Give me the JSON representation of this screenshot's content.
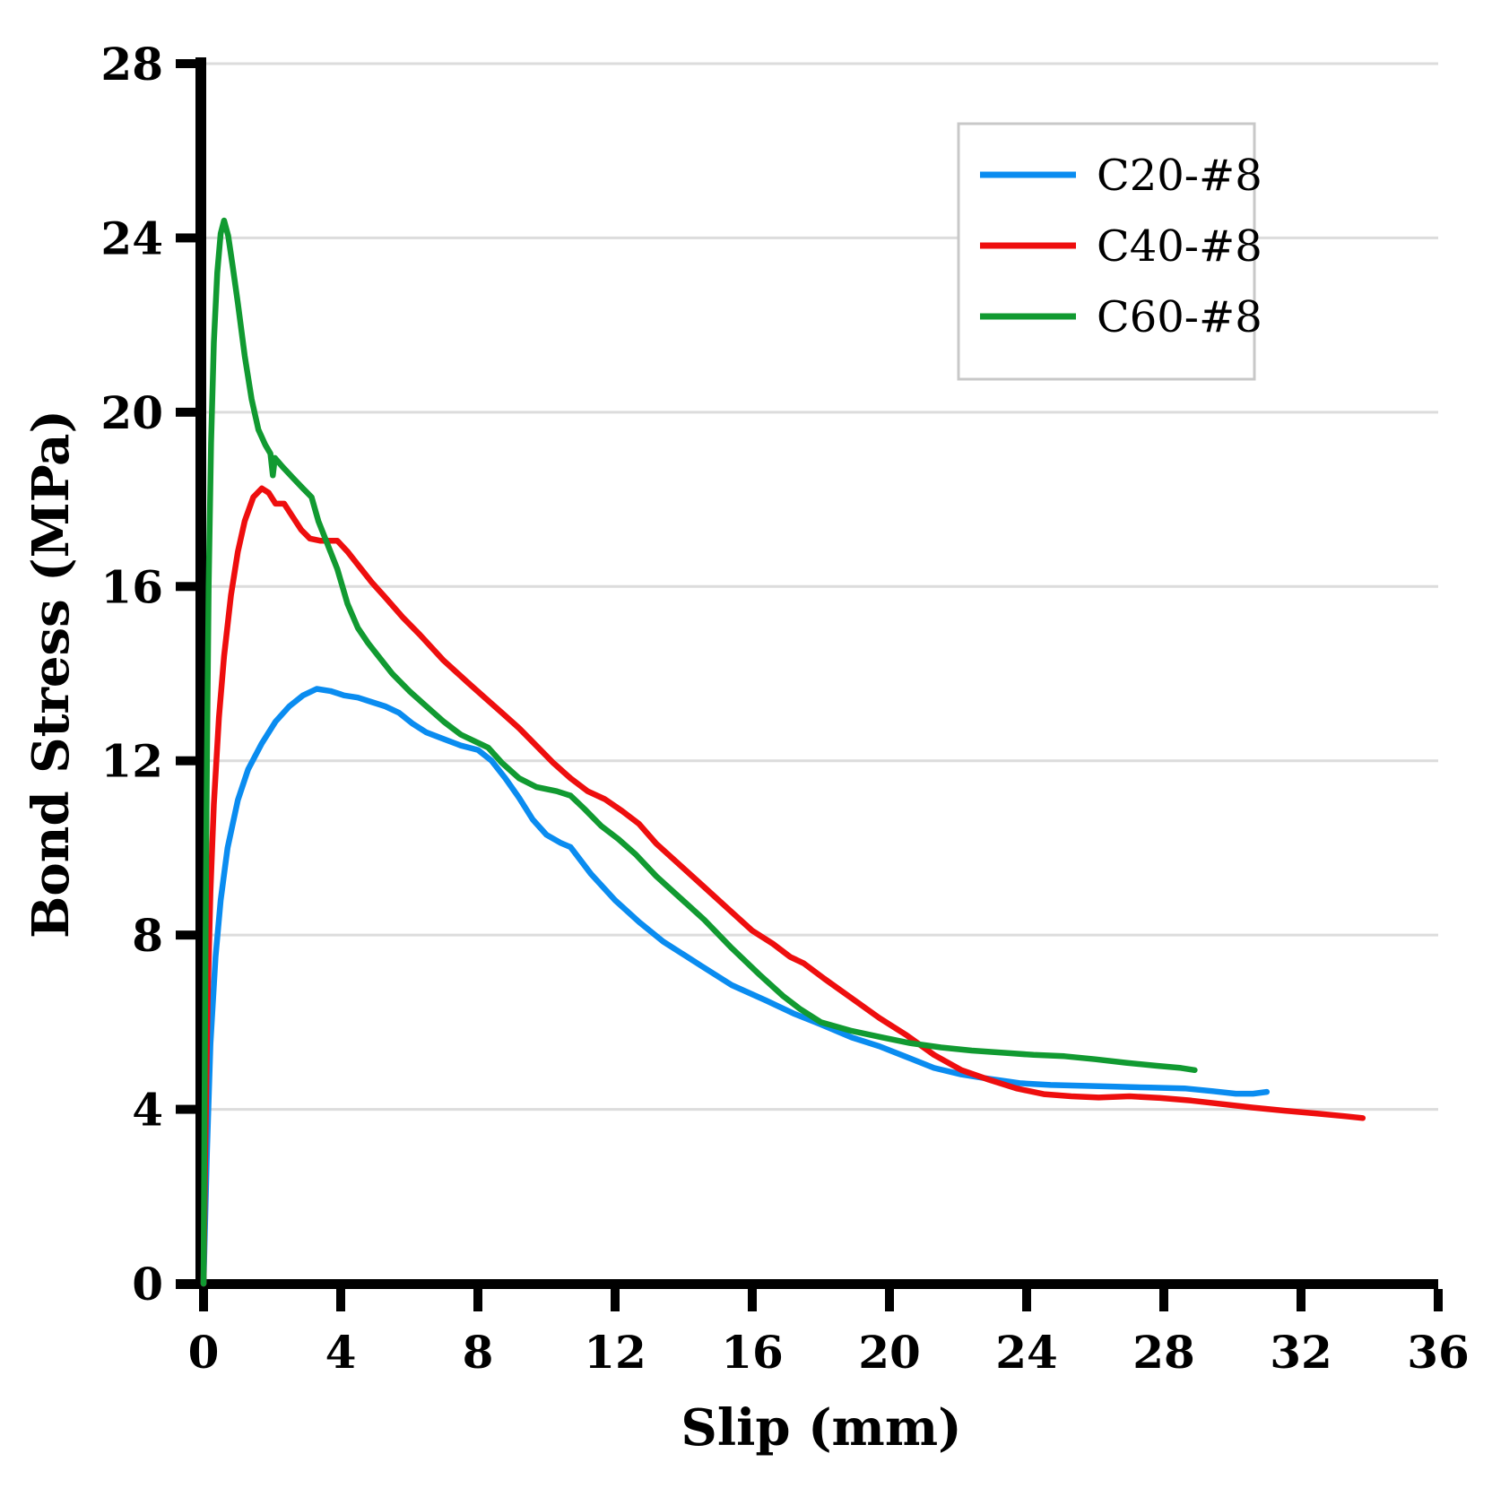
{
  "chart_data": {
    "type": "line",
    "title": "",
    "xlabel": "Slip (mm)",
    "ylabel": "Bond Stress (MPa)",
    "xlim": [
      0,
      36
    ],
    "ylim": [
      0,
      28
    ],
    "xticks": [
      0,
      4,
      8,
      12,
      16,
      20,
      24,
      28,
      32,
      36
    ],
    "yticks": [
      0,
      4,
      8,
      12,
      16,
      20,
      24,
      28
    ],
    "grid": "horizontal-only",
    "legend_position": "top-right",
    "series": [
      {
        "name": "C20-#8",
        "color": "#0a8cf0",
        "points": [
          [
            0,
            0
          ],
          [
            0.1,
            3
          ],
          [
            0.2,
            5.5
          ],
          [
            0.35,
            7.5
          ],
          [
            0.5,
            8.8
          ],
          [
            0.7,
            10
          ],
          [
            1,
            11.1
          ],
          [
            1.3,
            11.8
          ],
          [
            1.7,
            12.4
          ],
          [
            2.1,
            12.9
          ],
          [
            2.5,
            13.25
          ],
          [
            2.9,
            13.5
          ],
          [
            3.3,
            13.65
          ],
          [
            3.7,
            13.6
          ],
          [
            4.1,
            13.5
          ],
          [
            4.5,
            13.45
          ],
          [
            4.9,
            13.35
          ],
          [
            5.3,
            13.25
          ],
          [
            5.7,
            13.1
          ],
          [
            6.1,
            12.85
          ],
          [
            6.5,
            12.65
          ],
          [
            7,
            12.5
          ],
          [
            7.5,
            12.35
          ],
          [
            8,
            12.25
          ],
          [
            8.4,
            12
          ],
          [
            8.8,
            11.6
          ],
          [
            9.2,
            11.15
          ],
          [
            9.6,
            10.65
          ],
          [
            10,
            10.3
          ],
          [
            10.4,
            10.12
          ],
          [
            10.7,
            10.02
          ],
          [
            11.3,
            9.4
          ],
          [
            12,
            8.8
          ],
          [
            12.7,
            8.3
          ],
          [
            13.4,
            7.85
          ],
          [
            14.1,
            7.5
          ],
          [
            14.5,
            7.3
          ],
          [
            15.4,
            6.85
          ],
          [
            16.4,
            6.5
          ],
          [
            17.2,
            6.2
          ],
          [
            18,
            5.95
          ],
          [
            18.9,
            5.65
          ],
          [
            19.7,
            5.45
          ],
          [
            20.5,
            5.2
          ],
          [
            21.3,
            4.95
          ],
          [
            22.1,
            4.8
          ],
          [
            22.9,
            4.7
          ],
          [
            23.8,
            4.6
          ],
          [
            24.7,
            4.56
          ],
          [
            25.6,
            4.54
          ],
          [
            26.6,
            4.52
          ],
          [
            27.6,
            4.5
          ],
          [
            28.6,
            4.48
          ],
          [
            29.4,
            4.42
          ],
          [
            30.1,
            4.36
          ],
          [
            30.6,
            4.36
          ],
          [
            31,
            4.4
          ]
        ]
      },
      {
        "name": "C40-#8",
        "color": "#ee0e0e",
        "points": [
          [
            0,
            0
          ],
          [
            0.05,
            3
          ],
          [
            0.12,
            6.5
          ],
          [
            0.2,
            9
          ],
          [
            0.3,
            11
          ],
          [
            0.45,
            13
          ],
          [
            0.6,
            14.4
          ],
          [
            0.8,
            15.8
          ],
          [
            1,
            16.8
          ],
          [
            1.2,
            17.5
          ],
          [
            1.45,
            18.05
          ],
          [
            1.7,
            18.25
          ],
          [
            1.9,
            18.15
          ],
          [
            2.1,
            17.9
          ],
          [
            2.35,
            17.9
          ],
          [
            2.6,
            17.6
          ],
          [
            2.85,
            17.3
          ],
          [
            3.1,
            17.1
          ],
          [
            3.4,
            17.05
          ],
          [
            3.9,
            17.05
          ],
          [
            4.2,
            16.8
          ],
          [
            4.5,
            16.5
          ],
          [
            4.9,
            16.1
          ],
          [
            5.3,
            15.75
          ],
          [
            5.8,
            15.3
          ],
          [
            6.3,
            14.9
          ],
          [
            7,
            14.3
          ],
          [
            7.7,
            13.8
          ],
          [
            8.2,
            13.45
          ],
          [
            8.7,
            13.1
          ],
          [
            9.2,
            12.75
          ],
          [
            9.7,
            12.35
          ],
          [
            10.2,
            11.95
          ],
          [
            10.7,
            11.6
          ],
          [
            11.2,
            11.3
          ],
          [
            11.7,
            11.12
          ],
          [
            12.2,
            10.85
          ],
          [
            12.7,
            10.55
          ],
          [
            13.2,
            10.1
          ],
          [
            13.9,
            9.6
          ],
          [
            14.6,
            9.1
          ],
          [
            15.3,
            8.6
          ],
          [
            16,
            8.1
          ],
          [
            16.6,
            7.8
          ],
          [
            17.1,
            7.5
          ],
          [
            17.5,
            7.35
          ],
          [
            18.1,
            7
          ],
          [
            18.9,
            6.55
          ],
          [
            19.7,
            6.1
          ],
          [
            20.5,
            5.7
          ],
          [
            21.3,
            5.25
          ],
          [
            22.1,
            4.9
          ],
          [
            22.9,
            4.68
          ],
          [
            23.7,
            4.48
          ],
          [
            24.5,
            4.35
          ],
          [
            25.3,
            4.3
          ],
          [
            26.1,
            4.27
          ],
          [
            27,
            4.3
          ],
          [
            27.9,
            4.26
          ],
          [
            28.8,
            4.2
          ],
          [
            29.7,
            4.12
          ],
          [
            30.6,
            4.04
          ],
          [
            31.5,
            3.97
          ],
          [
            32.5,
            3.9
          ],
          [
            33.3,
            3.84
          ],
          [
            33.8,
            3.8
          ]
        ]
      },
      {
        "name": "C60-#8",
        "color": "#119a31",
        "points": [
          [
            0,
            0
          ],
          [
            0.03,
            4
          ],
          [
            0.06,
            8
          ],
          [
            0.1,
            12
          ],
          [
            0.15,
            16
          ],
          [
            0.22,
            19.3
          ],
          [
            0.3,
            21.6
          ],
          [
            0.4,
            23.2
          ],
          [
            0.5,
            24.1
          ],
          [
            0.6,
            24.4
          ],
          [
            0.72,
            24.05
          ],
          [
            0.85,
            23.35
          ],
          [
            1,
            22.5
          ],
          [
            1.2,
            21.3
          ],
          [
            1.4,
            20.3
          ],
          [
            1.6,
            19.6
          ],
          [
            1.8,
            19.25
          ],
          [
            1.95,
            19.05
          ],
          [
            2.02,
            18.55
          ],
          [
            2.08,
            18.95
          ],
          [
            2.3,
            18.75
          ],
          [
            2.6,
            18.5
          ],
          [
            2.9,
            18.25
          ],
          [
            3.15,
            18.05
          ],
          [
            3.35,
            17.5
          ],
          [
            3.6,
            17
          ],
          [
            3.9,
            16.4
          ],
          [
            4.2,
            15.6
          ],
          [
            4.5,
            15.05
          ],
          [
            4.8,
            14.7
          ],
          [
            5.1,
            14.4
          ],
          [
            5.5,
            14
          ],
          [
            6,
            13.6
          ],
          [
            6.5,
            13.25
          ],
          [
            7,
            12.9
          ],
          [
            7.5,
            12.6
          ],
          [
            7.9,
            12.45
          ],
          [
            8.3,
            12.3
          ],
          [
            8.7,
            11.95
          ],
          [
            9.2,
            11.6
          ],
          [
            9.7,
            11.4
          ],
          [
            10.3,
            11.3
          ],
          [
            10.7,
            11.2
          ],
          [
            11.1,
            10.9
          ],
          [
            11.6,
            10.5
          ],
          [
            12.1,
            10.2
          ],
          [
            12.6,
            9.85
          ],
          [
            13.2,
            9.35
          ],
          [
            13.9,
            8.85
          ],
          [
            14.6,
            8.35
          ],
          [
            15.4,
            7.7
          ],
          [
            16.2,
            7.1
          ],
          [
            16.9,
            6.6
          ],
          [
            17.4,
            6.3
          ],
          [
            18,
            6
          ],
          [
            18.9,
            5.8
          ],
          [
            19.8,
            5.65
          ],
          [
            20.6,
            5.52
          ],
          [
            21.5,
            5.42
          ],
          [
            22.4,
            5.35
          ],
          [
            23.3,
            5.3
          ],
          [
            24.2,
            5.25
          ],
          [
            25.1,
            5.22
          ],
          [
            26,
            5.15
          ],
          [
            26.9,
            5.07
          ],
          [
            27.8,
            5
          ],
          [
            28.5,
            4.95
          ],
          [
            28.9,
            4.9
          ]
        ]
      }
    ]
  },
  "colors": {
    "background": "#ffffff",
    "axis": "#000000",
    "gridline": "#dcdcdc",
    "legend_border": "#c8c8c8",
    "tick_text": "#000000"
  }
}
